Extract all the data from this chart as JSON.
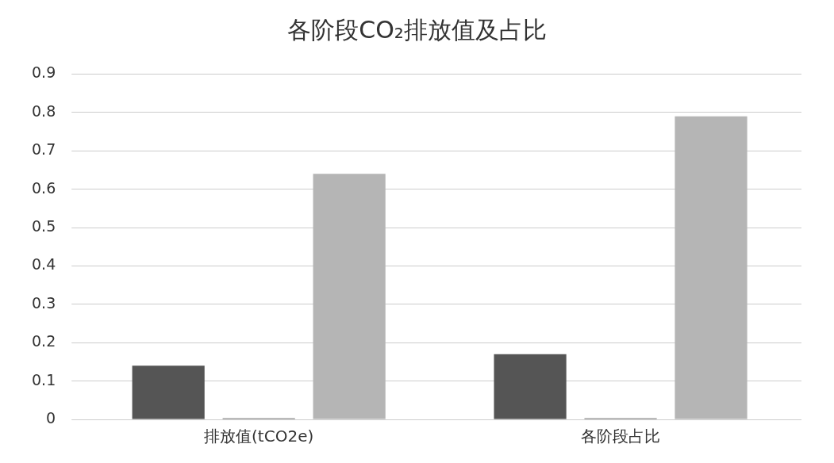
{
  "chart_data": {
    "type": "bar",
    "title": "各阶段CO₂排放值及占比",
    "categories": [
      "排放值(tCO2e)",
      "各阶段占比"
    ],
    "series": [
      {
        "color": "#555555",
        "values": [
          0.14,
          0.17
        ]
      },
      {
        "color": "#777777",
        "values": [
          0.003,
          0.003
        ]
      },
      {
        "color": "#b5b5b5",
        "values": [
          0.64,
          0.79
        ]
      }
    ],
    "ylim": [
      0,
      0.9
    ],
    "yticks": [
      0,
      0.1,
      0.2,
      0.3,
      0.4,
      0.5,
      0.6,
      0.7,
      0.8,
      0.9
    ],
    "grid": "y",
    "legend": false
  }
}
